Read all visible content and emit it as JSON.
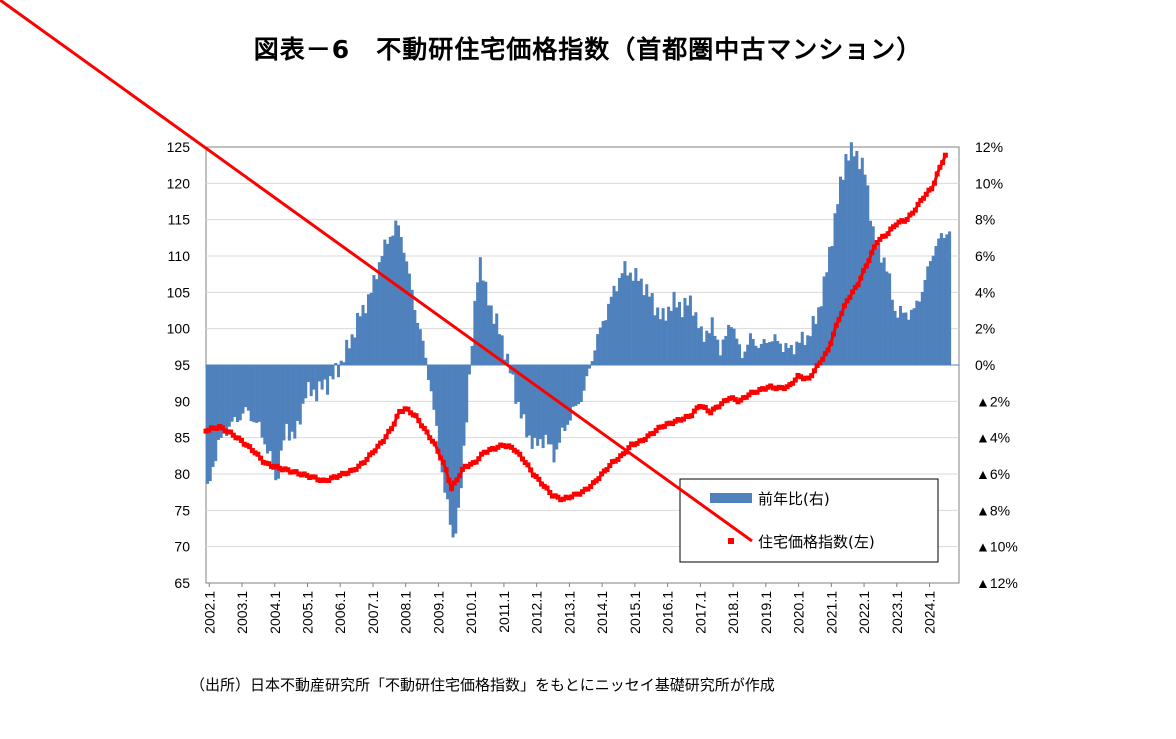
{
  "title": "図表－6　不動研住宅価格指数（首都圏中古マンション）",
  "source": "（出所）日本不動産研究所「不動研住宅価格指数」をもとにニッセイ基礎研究所が作成",
  "chart_data": {
    "type": "bar+line",
    "title": "図表－6　不動研住宅価格指数（首都圏中古マンション）",
    "x_tick_labels": [
      "2002.1",
      "2003.1",
      "2004.1",
      "2005.1",
      "2006.1",
      "2007.1",
      "2008.1",
      "2009.1",
      "2010.1",
      "2011.1",
      "2012.1",
      "2013.1",
      "2014.1",
      "2015.1",
      "2016.1",
      "2017.1",
      "2018.1",
      "2019.1",
      "2020.1",
      "2021.1",
      "2022.1",
      "2023.1",
      "2024.1"
    ],
    "y_left_ticks": [
      "125",
      "120",
      "115",
      "110",
      "105",
      "100",
      "95",
      "90",
      "85",
      "80",
      "75",
      "70",
      "65"
    ],
    "y_right_ticks": [
      "12%",
      "10%",
      "8%",
      "6%",
      "4%",
      "2%",
      "0%",
      "▲2%",
      "▲4%",
      "▲6%",
      "▲8%",
      "▲10%",
      "▲12%"
    ],
    "ylim_left": [
      65,
      125
    ],
    "ylim_right": [
      -12,
      12
    ],
    "legend_position": "bottom-right",
    "series": [
      {
        "name": "前年比(右)",
        "type": "bar",
        "axis": "right",
        "color": "#4F81BD",
        "points": [
          [
            2002.0,
            -7
          ],
          [
            2002.3,
            -4.5
          ],
          [
            2002.6,
            -3.5
          ],
          [
            2002.9,
            -3
          ],
          [
            2003.2,
            -2.5
          ],
          [
            2003.6,
            -3.5
          ],
          [
            2003.9,
            -5
          ],
          [
            2004.1,
            -6.5
          ],
          [
            2004.4,
            -3.5
          ],
          [
            2004.7,
            -4
          ],
          [
            2005.0,
            -1.5
          ],
          [
            2005.3,
            -1.5
          ],
          [
            2005.7,
            -1
          ],
          [
            2006.0,
            -0.2
          ],
          [
            2006.3,
            1
          ],
          [
            2006.6,
            2.5
          ],
          [
            2007.0,
            4
          ],
          [
            2007.3,
            6
          ],
          [
            2007.6,
            7.2
          ],
          [
            2007.8,
            7.8
          ],
          [
            2008.0,
            6.5
          ],
          [
            2008.3,
            3.5
          ],
          [
            2008.6,
            1
          ],
          [
            2008.8,
            -1
          ],
          [
            2009.1,
            -5
          ],
          [
            2009.3,
            -7.5
          ],
          [
            2009.5,
            -9.5
          ],
          [
            2009.7,
            -8
          ],
          [
            2009.9,
            -3
          ],
          [
            2010.1,
            1.5
          ],
          [
            2010.3,
            6.2
          ],
          [
            2010.5,
            4
          ],
          [
            2010.8,
            2.5
          ],
          [
            2011.1,
            0.8
          ],
          [
            2011.4,
            -1.5
          ],
          [
            2011.7,
            -3.5
          ],
          [
            2012.0,
            -4.5
          ],
          [
            2012.3,
            -4
          ],
          [
            2012.6,
            -5
          ],
          [
            2012.9,
            -3.5
          ],
          [
            2013.2,
            -2.5
          ],
          [
            2013.5,
            -1.5
          ],
          [
            2013.8,
            0.8
          ],
          [
            2014.1,
            2.5
          ],
          [
            2014.4,
            4
          ],
          [
            2014.7,
            5.3
          ],
          [
            2015.0,
            5
          ],
          [
            2015.3,
            4.5
          ],
          [
            2015.6,
            3.5
          ],
          [
            2015.9,
            2.5
          ],
          [
            2016.2,
            3.5
          ],
          [
            2016.5,
            3.2
          ],
          [
            2016.8,
            3.5
          ],
          [
            2017.1,
            1.5
          ],
          [
            2017.4,
            2.2
          ],
          [
            2017.7,
            0.8
          ],
          [
            2018.0,
            2.5
          ],
          [
            2018.3,
            0.5
          ],
          [
            2018.6,
            1.5
          ],
          [
            2018.9,
            1
          ],
          [
            2019.2,
            1.5
          ],
          [
            2019.5,
            1.2
          ],
          [
            2019.8,
            0.8
          ],
          [
            2020.0,
            1.2
          ],
          [
            2020.3,
            1.5
          ],
          [
            2020.6,
            2.5
          ],
          [
            2020.9,
            5
          ],
          [
            2021.2,
            8.5
          ],
          [
            2021.5,
            11.5
          ],
          [
            2021.8,
            11.8
          ],
          [
            2022.1,
            10.5
          ],
          [
            2022.4,
            6.5
          ],
          [
            2022.7,
            5.8
          ],
          [
            2023.0,
            3
          ],
          [
            2023.3,
            2.8
          ],
          [
            2023.6,
            3
          ],
          [
            2023.9,
            4.5
          ],
          [
            2024.2,
            6.5
          ],
          [
            2024.5,
            7.2
          ],
          [
            2024.7,
            7.5
          ]
        ]
      },
      {
        "name": "住宅価格指数(左)",
        "type": "line",
        "axis": "left",
        "color": "#FF0000",
        "points": [
          [
            2002.0,
            86
          ],
          [
            2002.4,
            86.5
          ],
          [
            2002.8,
            85.5
          ],
          [
            2003.1,
            84.5
          ],
          [
            2003.5,
            83
          ],
          [
            2003.8,
            81.5
          ],
          [
            2004.1,
            81
          ],
          [
            2004.5,
            80.5
          ],
          [
            2004.9,
            80
          ],
          [
            2005.3,
            79.5
          ],
          [
            2005.6,
            79
          ],
          [
            2005.9,
            79.5
          ],
          [
            2006.2,
            80
          ],
          [
            2006.5,
            80.5
          ],
          [
            2006.8,
            81.5
          ],
          [
            2007.1,
            83
          ],
          [
            2007.4,
            84.5
          ],
          [
            2007.7,
            86.5
          ],
          [
            2007.9,
            88.5
          ],
          [
            2008.1,
            89
          ],
          [
            2008.4,
            88
          ],
          [
            2008.7,
            86
          ],
          [
            2009.0,
            84
          ],
          [
            2009.3,
            81
          ],
          [
            2009.5,
            78
          ],
          [
            2009.7,
            79.5
          ],
          [
            2009.9,
            81
          ],
          [
            2010.2,
            81.5
          ],
          [
            2010.5,
            83
          ],
          [
            2010.8,
            83.5
          ],
          [
            2011.1,
            84
          ],
          [
            2011.4,
            83.5
          ],
          [
            2011.7,
            82
          ],
          [
            2012.0,
            80
          ],
          [
            2012.3,
            78.5
          ],
          [
            2012.6,
            77
          ],
          [
            2012.9,
            76.5
          ],
          [
            2013.2,
            77
          ],
          [
            2013.5,
            77.5
          ],
          [
            2013.8,
            78.5
          ],
          [
            2014.1,
            80
          ],
          [
            2014.4,
            81.5
          ],
          [
            2014.7,
            82.5
          ],
          [
            2015.0,
            84
          ],
          [
            2015.3,
            84.5
          ],
          [
            2015.6,
            85.5
          ],
          [
            2015.9,
            86.5
          ],
          [
            2016.2,
            87
          ],
          [
            2016.5,
            87.5
          ],
          [
            2016.8,
            88
          ],
          [
            2017.1,
            89.5
          ],
          [
            2017.4,
            88.5
          ],
          [
            2017.7,
            89.5
          ],
          [
            2018.0,
            90.5
          ],
          [
            2018.3,
            90
          ],
          [
            2018.6,
            91
          ],
          [
            2018.9,
            91.5
          ],
          [
            2019.2,
            92
          ],
          [
            2019.5,
            91.8
          ],
          [
            2019.8,
            92
          ],
          [
            2020.1,
            93.5
          ],
          [
            2020.4,
            93
          ],
          [
            2020.7,
            95
          ],
          [
            2021.0,
            97
          ],
          [
            2021.3,
            101
          ],
          [
            2021.6,
            104
          ],
          [
            2021.9,
            106
          ],
          [
            2022.2,
            109
          ],
          [
            2022.5,
            112
          ],
          [
            2022.8,
            113
          ],
          [
            2023.1,
            114.5
          ],
          [
            2023.4,
            115
          ],
          [
            2023.6,
            116
          ],
          [
            2023.9,
            118
          ],
          [
            2024.2,
            119.5
          ],
          [
            2024.4,
            122
          ],
          [
            2024.6,
            124
          ]
        ]
      }
    ]
  }
}
